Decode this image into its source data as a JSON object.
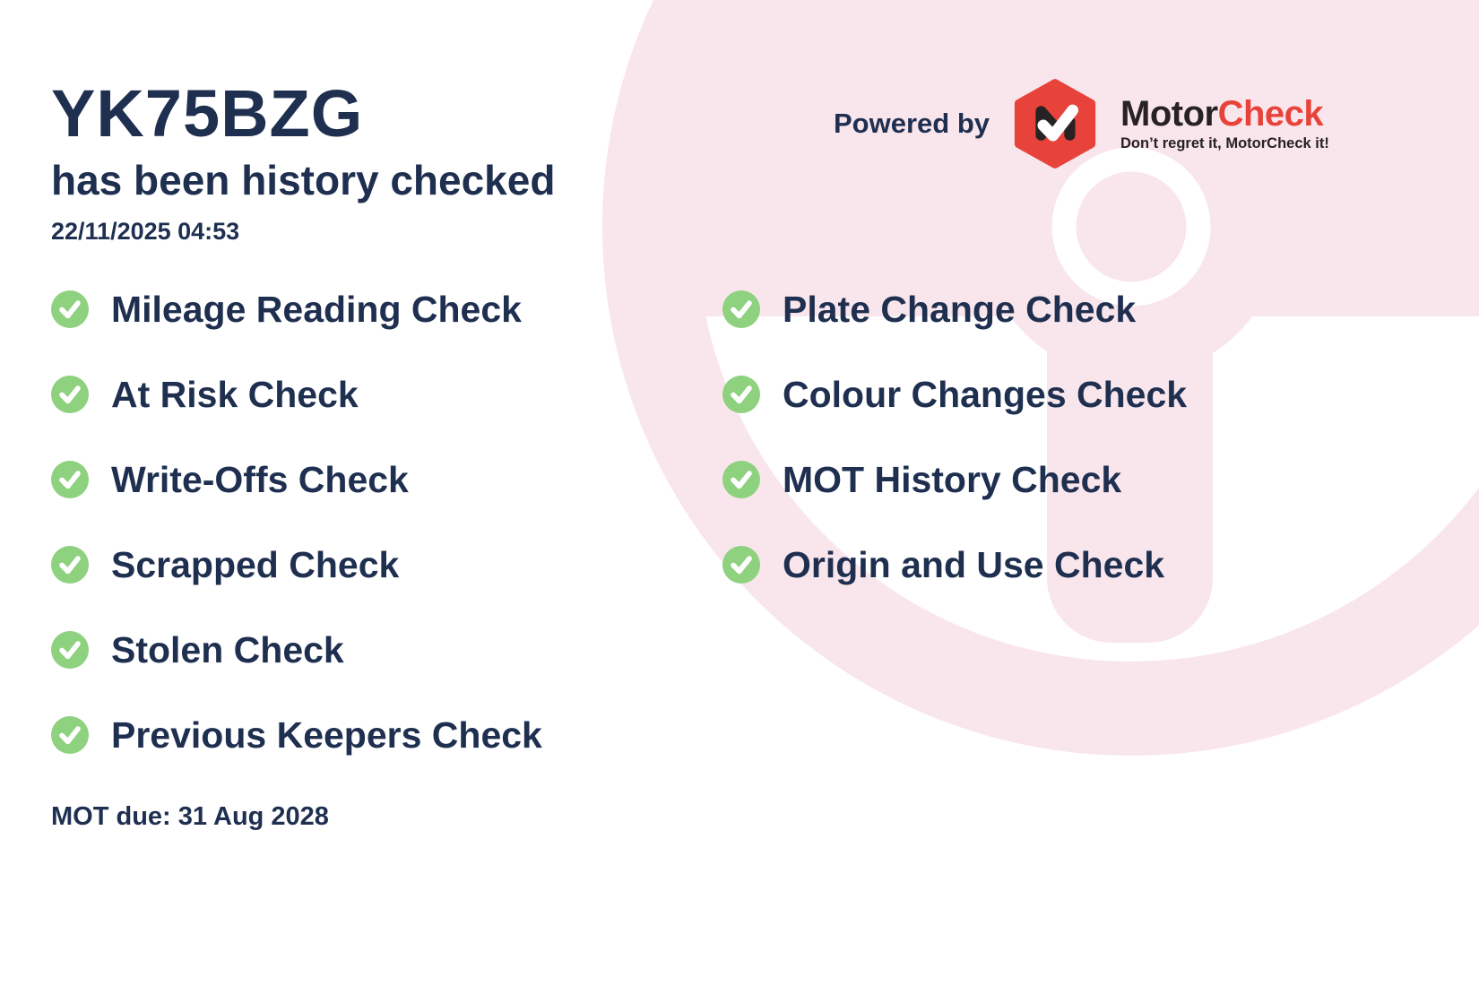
{
  "header": {
    "registration": "YK75BZG",
    "subtitle": "has been history checked",
    "timestamp": "22/11/2025 04:53"
  },
  "powered_by": {
    "label": "Powered by",
    "brand_motor": "Motor",
    "brand_check": "Check",
    "tagline": "Don’t regret it, MotorCheck it!"
  },
  "checks": {
    "left": [
      "Mileage Reading Check",
      "At Risk Check",
      "Write-Offs Check",
      "Scrapped Check",
      "Stolen Check",
      "Previous Keepers Check"
    ],
    "right": [
      "Plate Change Check",
      "Colour Changes Check",
      "MOT History Check",
      "Origin and Use Check"
    ]
  },
  "footer": {
    "mot_due": "MOT due: 31 Aug 2028"
  },
  "icons": {
    "list_bullet": "check-circle-icon",
    "logo": "motorcheck-hexagon-icon",
    "background": "steering-wheel-graphic"
  },
  "colors": {
    "navy": "#1f2f50",
    "green": "#8ed17e",
    "pink": "#f9e6ec",
    "red": "#e8433a",
    "dark": "#272224"
  }
}
